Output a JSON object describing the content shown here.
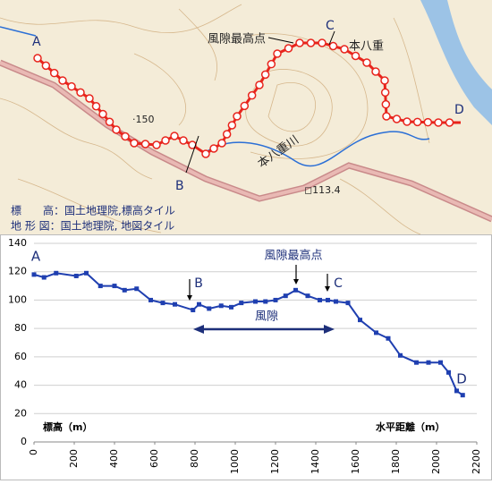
{
  "map": {
    "labels": [
      "A",
      "B",
      "C",
      "D",
      "風隙最高点",
      "本八重",
      "·150",
      "本八重川",
      "◻113.4"
    ],
    "credits": [
      "標　　高：国土地理院,標高タイル",
      "地 形 図：国土地理院, 地図タイル"
    ]
  },
  "chart_data": {
    "type": "line",
    "x": [
      0,
      50,
      110,
      210,
      260,
      330,
      400,
      450,
      510,
      580,
      640,
      700,
      790,
      820,
      870,
      930,
      980,
      1030,
      1100,
      1150,
      1200,
      1250,
      1300,
      1360,
      1420,
      1460,
      1500,
      1560,
      1620,
      1700,
      1760,
      1820,
      1900,
      1960,
      2020,
      2060,
      2100,
      2130
    ],
    "series": [
      {
        "color": "#1f3fb0",
        "values": [
          118,
          116,
          119,
          117,
          119,
          110,
          110,
          107,
          108,
          100,
          98,
          97,
          93,
          97,
          94,
          96,
          95,
          98,
          99,
          99,
          100,
          103,
          107,
          103,
          100,
          100,
          99,
          98,
          86,
          77,
          73,
          61,
          56,
          56,
          56,
          49,
          36,
          33
        ]
      }
    ],
    "xlim": [
      0,
      2200
    ],
    "xticks": [
      0,
      200,
      400,
      600,
      800,
      1000,
      1200,
      1400,
      1600,
      1800,
      2000,
      2200
    ],
    "ylim": [
      0,
      140
    ],
    "yticks": [
      0,
      20,
      40,
      60,
      80,
      100,
      120,
      140
    ],
    "grid": true,
    "y_label": "標高（m）",
    "x_label": "水平距離（m）",
    "annotations": [
      "A",
      "B",
      "風隙最高点",
      "C",
      "D",
      "風隙"
    ]
  }
}
